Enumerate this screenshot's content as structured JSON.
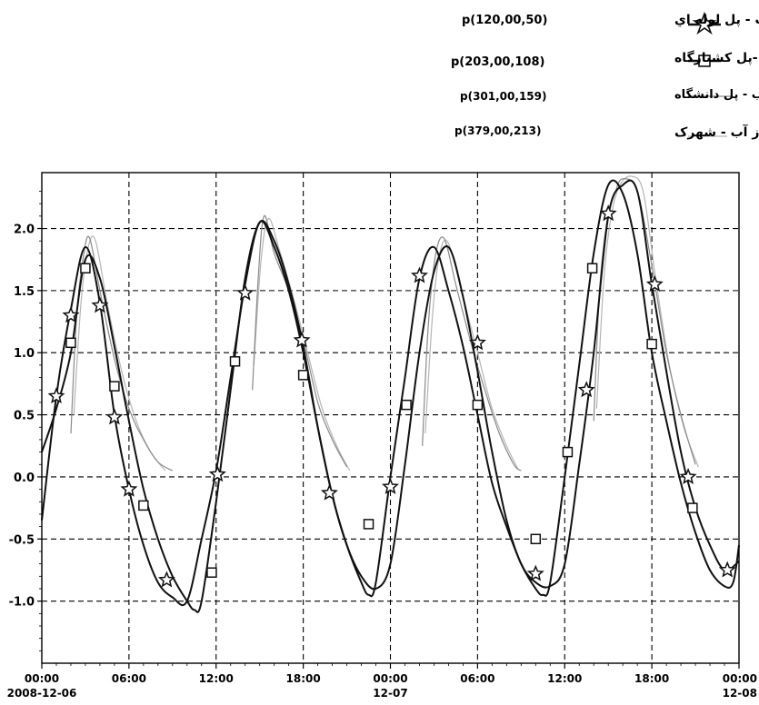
{
  "chart_data": {
    "type": "line",
    "title": "",
    "xlabel": "",
    "ylabel": "",
    "x_unit": "hours",
    "xlim": [
      0,
      48
    ],
    "ylim": [
      -1.5,
      2.45
    ],
    "grid": true,
    "grid_style": "dashed",
    "legend_position": "top-right",
    "y_ticks": [
      "2.0",
      "1.5",
      "1.0",
      "0.5",
      "0.0",
      "-0.5",
      "-1.0"
    ],
    "y_tick_values": [
      2.0,
      1.5,
      1.0,
      0.5,
      0.0,
      -0.5,
      -1.0
    ],
    "x_ticks": [
      {
        "x": 0,
        "line1": "00:00",
        "line2": "2008-12-06"
      },
      {
        "x": 6,
        "line1": "06:00",
        "line2": ""
      },
      {
        "x": 12,
        "line1": "12:00",
        "line2": ""
      },
      {
        "x": 18,
        "line1": "18:00",
        "line2": ""
      },
      {
        "x": 24,
        "line1": "00:00",
        "line2": "12-07"
      },
      {
        "x": 30,
        "line1": "06:00",
        "line2": ""
      },
      {
        "x": 36,
        "line1": "12:00",
        "line2": ""
      },
      {
        "x": 42,
        "line1": "18:00",
        "line2": ""
      },
      {
        "x": 48,
        "line1": "00:00",
        "line2": "12-08"
      }
    ],
    "series": [
      {
        "name": "تراز آب - پل لوله اي",
        "code": "p(120,00,50)",
        "marker": "star",
        "color": "#111111",
        "stroke_width": 2,
        "x": [
          0,
          1.0,
          2.0,
          3.0,
          4.0,
          5.0,
          6.0,
          7.0,
          8.0,
          9.0,
          10.0,
          11.0,
          12.0,
          13.0,
          14.0,
          15.0,
          16.0,
          17.0,
          18.0,
          19.0,
          20.0,
          21.0,
          22.0,
          23.0,
          24.0,
          25.0,
          26.0,
          27.0,
          28.0,
          29.0,
          30.0,
          31.0,
          32.0,
          33.0,
          34.0,
          35.0,
          36.0,
          37.0,
          38.0,
          39.0,
          40.0,
          41.0,
          42.0,
          43.0,
          44.0,
          45.0,
          46.0,
          47.0,
          48.0
        ],
        "y": [
          -0.35,
          0.65,
          1.35,
          1.85,
          1.4,
          0.5,
          -0.1,
          -0.55,
          -0.85,
          -0.97,
          -1.0,
          -0.5,
          0.05,
          0.8,
          1.55,
          2.05,
          1.85,
          1.5,
          1.0,
          0.4,
          -0.15,
          -0.55,
          -0.8,
          -0.9,
          -0.7,
          0.1,
          1.0,
          1.65,
          1.85,
          1.45,
          0.85,
          0.2,
          -0.35,
          -0.7,
          -0.85,
          -0.88,
          -0.7,
          0.1,
          1.0,
          2.1,
          2.35,
          2.3,
          1.55,
          0.85,
          0.2,
          -0.25,
          -0.55,
          -0.75,
          -0.68
        ],
        "markers": [
          [
            1.0,
            0.65
          ],
          [
            2.0,
            1.3
          ],
          [
            4.0,
            1.38
          ],
          [
            5.0,
            0.48
          ],
          [
            6.0,
            -0.1
          ],
          [
            8.6,
            -0.83
          ],
          [
            12.1,
            0.02
          ],
          [
            14.0,
            1.48
          ],
          [
            17.9,
            1.1
          ],
          [
            19.8,
            -0.13
          ],
          [
            24.0,
            -0.08
          ],
          [
            26.0,
            1.62
          ],
          [
            30.0,
            1.08
          ],
          [
            34.0,
            -0.78
          ],
          [
            37.5,
            0.7
          ],
          [
            39.0,
            2.12
          ],
          [
            42.2,
            1.55
          ],
          [
            44.5,
            0.0
          ],
          [
            47.2,
            -0.75
          ]
        ]
      },
      {
        "name": "تراز آب -پل کشتارگاه",
        "code": "p(203,00,108)",
        "marker": "square",
        "color": "#111111",
        "stroke_width": 2,
        "x": [
          0,
          1.0,
          2.0,
          3.0,
          4.0,
          5.0,
          6.0,
          7.0,
          8.0,
          9.0,
          10.0,
          10.5,
          11.0,
          12.0,
          13.0,
          14.0,
          15.0,
          16.0,
          17.0,
          18.0,
          19.0,
          20.0,
          21.0,
          22.0,
          22.5,
          23.0,
          24.0,
          25.0,
          26.0,
          27.0,
          28.0,
          29.0,
          30.0,
          31.0,
          32.0,
          33.0,
          34.0,
          34.5,
          35.0,
          36.0,
          37.0,
          38.0,
          39.0,
          40.0,
          41.0,
          42.0,
          43.0,
          44.0,
          45.0,
          46.0,
          47.0,
          47.6,
          48.0
        ],
        "y": [
          0.2,
          0.55,
          1.0,
          1.75,
          1.6,
          1.05,
          0.45,
          -0.1,
          -0.5,
          -0.8,
          -1.0,
          -1.07,
          -1.0,
          -0.2,
          0.7,
          1.6,
          2.05,
          1.9,
          1.55,
          1.05,
          0.4,
          -0.15,
          -0.55,
          -0.85,
          -0.95,
          -0.85,
          0.0,
          0.8,
          1.6,
          1.85,
          1.5,
          1.05,
          0.5,
          -0.05,
          -0.4,
          -0.7,
          -0.9,
          -0.95,
          -0.85,
          0.0,
          0.9,
          1.8,
          2.35,
          2.28,
          1.8,
          1.0,
          0.45,
          -0.05,
          -0.45,
          -0.75,
          -0.88,
          -0.85,
          -0.55
        ],
        "markers": [
          [
            2.0,
            1.08
          ],
          [
            3.0,
            1.68
          ],
          [
            5.0,
            0.73
          ],
          [
            7.0,
            -0.23
          ],
          [
            11.7,
            -0.77
          ],
          [
            13.3,
            0.93
          ],
          [
            18.0,
            0.82
          ],
          [
            22.5,
            -0.38
          ],
          [
            25.1,
            0.58
          ],
          [
            30.0,
            0.58
          ],
          [
            34.0,
            -0.5
          ],
          [
            36.2,
            0.2
          ],
          [
            37.9,
            1.68
          ],
          [
            42.0,
            1.07
          ],
          [
            44.8,
            -0.25
          ]
        ]
      },
      {
        "name": "تراز آب - پل دانشگاه",
        "code": "p(301,00,159)",
        "marker": "none",
        "color": "#8a8a8a",
        "stroke_width": 1.2,
        "x": [
          2.0,
          2.4,
          2.9,
          3.3,
          4.0,
          5.0,
          6.0,
          7.0,
          8.0,
          9.0
        ],
        "y": [
          0.35,
          1.3,
          1.8,
          1.92,
          1.5,
          0.95,
          0.55,
          0.3,
          0.12,
          0.05
        ],
        "segments": [
          {
            "x": [
              2.0,
              2.4,
              2.9,
              3.3,
              4.0,
              5.0,
              6.0,
              7.0,
              8.0,
              9.0
            ],
            "y": [
              0.35,
              1.3,
              1.8,
              1.92,
              1.5,
              0.95,
              0.55,
              0.3,
              0.12,
              0.05
            ]
          },
          {
            "x": [
              14.5,
              14.9,
              15.3,
              16.0,
              17.0,
              18.0,
              19.0,
              20.0,
              21.0
            ],
            "y": [
              0.7,
              1.6,
              2.1,
              1.8,
              1.5,
              1.1,
              0.6,
              0.3,
              0.08
            ]
          },
          {
            "x": [
              26.2,
              26.6,
              27.1,
              27.7,
              28.5,
              29.5,
              30.5,
              31.5,
              32.5,
              33.0
            ],
            "y": [
              0.25,
              1.2,
              1.78,
              1.92,
              1.55,
              1.1,
              0.7,
              0.35,
              0.1,
              0.05
            ]
          },
          {
            "x": [
              38.0,
              38.4,
              38.9,
              39.5,
              40.0,
              41.0,
              42.0,
              43.0,
              44.0,
              45.0
            ],
            "y": [
              0.45,
              1.5,
              2.05,
              2.3,
              2.4,
              2.3,
              1.7,
              1.0,
              0.5,
              0.1
            ]
          }
        ]
      },
      {
        "name": "شهرک",
        "code": "p(379,00,213)",
        "marker": "none",
        "color": "#b5b5b5",
        "stroke_width": 1.2,
        "x": [
          2.2,
          2.7,
          3.2,
          3.7,
          4.5,
          5.5,
          6.5,
          7.5,
          8.5
        ],
        "y": [
          0.5,
          1.4,
          1.85,
          1.9,
          1.4,
          0.85,
          0.45,
          0.2,
          0.05
        ],
        "segments": [
          {
            "x": [
              2.2,
              2.7,
              3.2,
              3.7,
              4.5,
              5.5,
              6.5,
              7.5,
              8.5
            ],
            "y": [
              0.5,
              1.4,
              1.85,
              1.9,
              1.4,
              0.85,
              0.45,
              0.2,
              0.05
            ]
          },
          {
            "x": [
              14.6,
              15.1,
              15.6,
              16.3,
              17.3,
              18.3,
              19.3,
              20.3,
              21.2
            ],
            "y": [
              0.9,
              1.75,
              2.08,
              1.85,
              1.45,
              1.0,
              0.55,
              0.25,
              0.05
            ]
          },
          {
            "x": [
              26.4,
              26.9,
              27.4,
              28.0,
              29.0,
              30.0,
              31.0,
              32.0,
              32.8
            ],
            "y": [
              0.35,
              1.3,
              1.8,
              1.88,
              1.45,
              1.0,
              0.55,
              0.25,
              0.06
            ]
          },
          {
            "x": [
              38.2,
              38.7,
              39.2,
              39.8,
              40.6,
              41.4,
              42.2,
              43.2,
              44.2,
              45.2
            ],
            "y": [
              0.55,
              1.6,
              2.1,
              2.35,
              2.42,
              2.3,
              1.65,
              0.9,
              0.4,
              0.08
            ]
          }
        ]
      }
    ]
  },
  "legend": [
    {
      "name": "تراز آب - پل لوله اي",
      "code": "p(120,00,50)"
    },
    {
      "name": "تراز آب -پل کشتارگاه",
      "code": "p(203,00,108)"
    },
    {
      "name": "تراز آب - پل دانشگاه",
      "code": "p(301,00,159)"
    },
    {
      "name": "تراز آب -   شهرک",
      "code": "p(379,00,213)"
    }
  ]
}
